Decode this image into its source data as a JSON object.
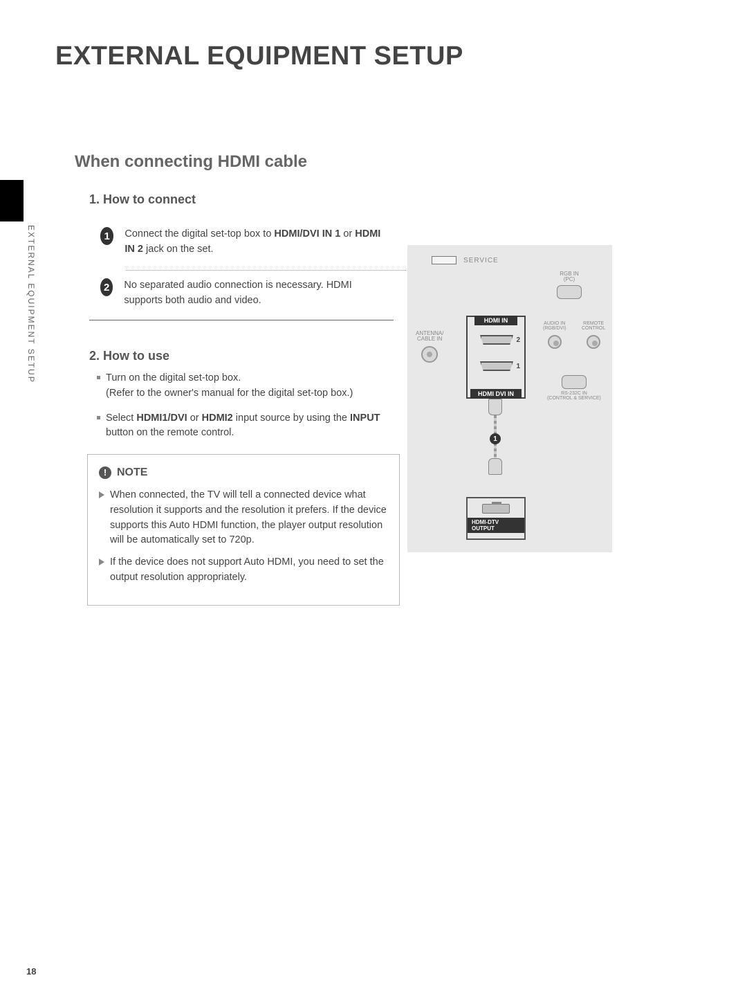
{
  "page": {
    "title": "EXTERNAL EQUIPMENT SETUP",
    "side_label": "EXTERNAL EQUIPMENT SETUP",
    "number": "18"
  },
  "section": {
    "heading": "When connecting HDMI cable",
    "connect": {
      "heading": "1. How to connect",
      "steps": [
        {
          "n": "1",
          "html": "Connect the digital set-top box to <b>HDMI/DVI IN 1</b> or <b>HDMI IN 2</b> jack on the set."
        },
        {
          "n": "2",
          "html": "No separated audio connection is necessary. HDMI supports both audio and video."
        }
      ]
    },
    "use": {
      "heading": "2. How to use",
      "items": [
        {
          "html": "Turn on the digital set-top box.<br>(Refer to the owner's manual for the digital set-top box.)"
        },
        {
          "html": "Select <b>HDMI1/DVI</b> or <b>HDMI2</b> input source by using the <b>INPUT</b> button on the remote control."
        }
      ]
    },
    "note": {
      "label": "NOTE",
      "items": [
        "When connected, the TV will tell a connected device what resolution it supports and the resolution it prefers. If the device supports this Auto HDMI function, the player output resolution will be automatically set to 720p.",
        "If the device does not support Auto HDMI, you need to set the output resolution appropriately."
      ]
    }
  },
  "diagram": {
    "service": "SERVICE",
    "rgb_in": "RGB IN",
    "rgb_pc": "(PC)",
    "antenna": "ANTENNA/",
    "cable_in": "CABLE IN",
    "audio_in": "AUDIO IN",
    "audio_rgb": "(RGB/DVI)",
    "remote": "REMOTE",
    "control": "CONTROL",
    "rs232": "RS-232C IN",
    "rs232_sub": "(CONTROL & SERVICE)",
    "hdmi_in": "HDMI IN",
    "port2": "2",
    "port1": "1",
    "hdmi_dvi_in": "HDMI  DVI IN",
    "cable_badge": "1",
    "output": "HDMI-DTV OUTPUT"
  },
  "colors": {
    "text": "#444444",
    "heading_grey": "#666666",
    "box_border": "#bbbbbb",
    "diagram_bg": "#e8e8e8",
    "dark": "#333333",
    "bullet": "#888888"
  },
  "typography": {
    "title_size": 38,
    "section_size": 24,
    "subheading_size": 18,
    "body_size": 14.5,
    "side_size": 12
  }
}
